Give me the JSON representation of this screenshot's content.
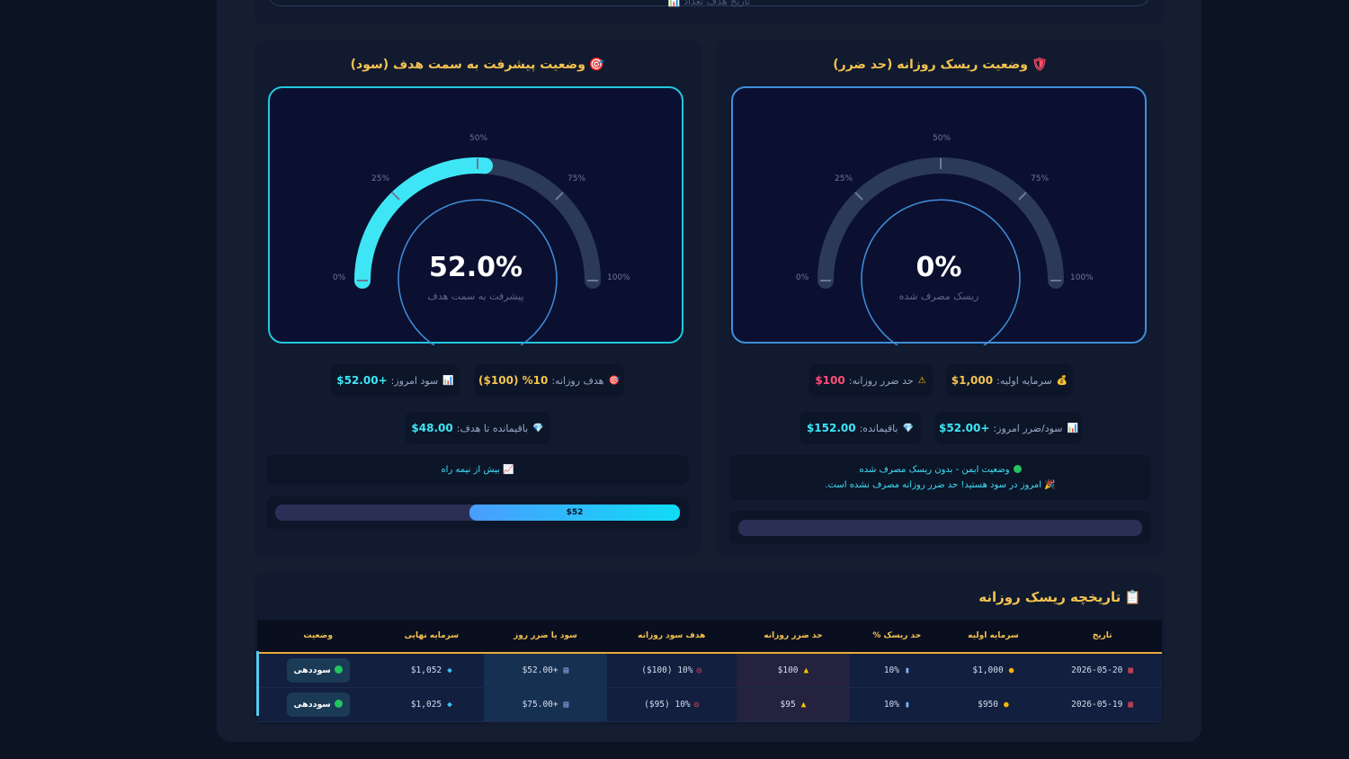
{
  "top": {
    "faint_text": "📊  تاریخ  هدف تعداد"
  },
  "profit_panel": {
    "title": "وضعیت پیشرفت به سمت هدف (سود)",
    "title_icon": "🎯",
    "gauge": {
      "value_text": "52.0%",
      "value": 52.0,
      "subtitle": "پیشرفت به سمت هدف",
      "ticks": [
        "0%",
        "25%",
        "50%",
        "75%",
        "100%"
      ],
      "fill_color": "#3ee6f5",
      "border_color": "#22c8e0"
    },
    "chips": [
      {
        "icon": "🎯",
        "label": "هدف روزانه:",
        "value": "%10 ($100)",
        "color": "#f4c350"
      },
      {
        "icon": "📊",
        "label": "سود امروز:",
        "value": "+$52.00",
        "color": "#3ee6f5"
      },
      {
        "icon": "💎",
        "label": "باقیمانده تا هدف:",
        "value": "$48.00",
        "color": "#3ee6f5"
      }
    ],
    "status_text": "بیش از نیمه راه",
    "status_icon": "📈",
    "bar": {
      "value": 52,
      "label": "$52"
    }
  },
  "risk_panel": {
    "title": "وضعیت ریسک روزانه (حد ضرر)",
    "title_icon": "🛡",
    "gauge": {
      "value_text": "0%",
      "value": 0,
      "subtitle": "ریسک مصرف شده",
      "ticks": [
        "0%",
        "25%",
        "50%",
        "75%",
        "100%"
      ],
      "border_color": "#3f8fdc"
    },
    "chips": [
      {
        "icon": "💰",
        "label": "سرمایه اولیه:",
        "value": "$1,000",
        "color": "#f4c350"
      },
      {
        "icon": "⚠",
        "label": "حد ضرر روزانه:",
        "value": "$100",
        "color": "#ff4d7a"
      },
      {
        "icon": "📊",
        "label": "سود/ضرر امروز:",
        "value": "+$52.00",
        "color": "#3ee6f5"
      },
      {
        "icon": "💎",
        "label": "باقیمانده:",
        "value": "$152.00",
        "color": "#3ee6f5"
      }
    ],
    "status_line1": "وضعیت ایمن - بدون ریسک مصرف شده",
    "status_line2": "امروز در سود هستید! حد ضرر روزانه مصرف نشده است.",
    "status_icon2": "🎉",
    "bar": {
      "value": 0
    }
  },
  "history": {
    "title": "تاریخچه ریسک روزانه",
    "title_icon": "📋",
    "columns": [
      "تاریخ",
      "سرمایه اولیه",
      "حد ریسک %",
      "حد ضرر روزانه",
      "هدف سود روزانه",
      "سود یا ضرر روز",
      "سرمایه نهایی",
      "وضعیت"
    ],
    "rows": [
      {
        "date": "2026-05-20",
        "capital": "$1,000",
        "risk_pct": "10%",
        "stop": "$100",
        "target": "10% ($100)",
        "pnl": "+$52.00",
        "final": "$1,052",
        "status": "سوددهی"
      },
      {
        "date": "2026-05-19",
        "capital": "$950",
        "risk_pct": "10%",
        "stop": "$95",
        "target": "10% ($95)",
        "pnl": "+$75.00",
        "final": "$1,025",
        "status": "سوددهی"
      }
    ]
  }
}
